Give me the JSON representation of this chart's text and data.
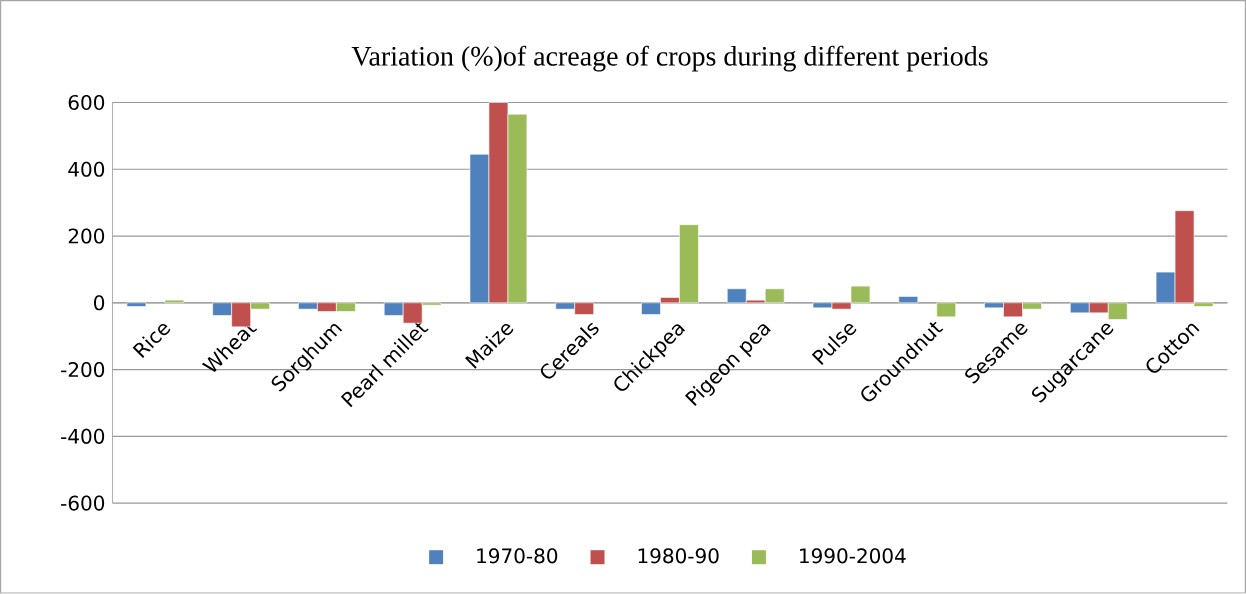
{
  "chart_data": {
    "type": "bar",
    "title": "Variation (%)of acreage of crops during different periods",
    "categories": [
      "Rice",
      "Wheat",
      "Sorghum",
      "Pearl millet",
      "Maize",
      "Cereals",
      "Chickpea",
      "Pigeon pea",
      "Pulse",
      "Groundnut",
      "Sesame",
      "Sugarcane",
      "Cotton"
    ],
    "series": [
      {
        "name": "1970-80",
        "color": "#4f81bd",
        "values": [
          -11,
          -38,
          -19,
          -38,
          445,
          -19,
          -35,
          42,
          -15,
          19,
          -15,
          -30,
          92
        ]
      },
      {
        "name": "1980-90",
        "color": "#c0504d",
        "values": [
          null,
          -72,
          -26,
          -61,
          600,
          -35,
          16,
          8,
          -19,
          null,
          -42,
          -30,
          276
        ]
      },
      {
        "name": "1990-2004",
        "color": "#9bbb59",
        "values": [
          8,
          -19,
          -26,
          -7,
          565,
          null,
          234,
          42,
          50,
          -42,
          -19,
          -50,
          -11
        ]
      }
    ],
    "ylim": [
      -600,
      600
    ],
    "yticks": [
      -600,
      -400,
      -200,
      0,
      200,
      400,
      600
    ],
    "grid": "y",
    "legend": "bottom"
  }
}
